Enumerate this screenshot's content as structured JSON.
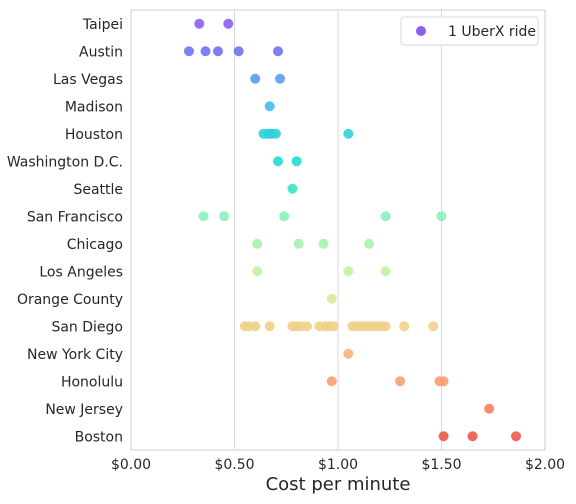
{
  "chart_data": {
    "type": "scatter",
    "title": "",
    "xlabel": "Cost per minute",
    "ylabel": "",
    "xlim": [
      0,
      2
    ],
    "x_ticks": [
      0,
      0.5,
      1.0,
      1.5,
      2.0
    ],
    "x_tick_labels": [
      "$0.00",
      "$0.50",
      "$1.00",
      "$1.50",
      "$2.00"
    ],
    "grid": "vertical",
    "legend": {
      "position": "top-right",
      "label": "1 UberX ride"
    },
    "categories": [
      "Taipei",
      "Austin",
      "Las Vegas",
      "Madison",
      "Houston",
      "Washington D.C.",
      "Seattle",
      "San Francisco",
      "Chicago",
      "Los Angeles",
      "Orange County",
      "San Diego",
      "New York City",
      "Honolulu",
      "New Jersey",
      "Boston"
    ],
    "colors": [
      "#8c5ef3",
      "#6f72f2",
      "#5b9bf0",
      "#43bdea",
      "#2dd3dc",
      "#24dccd",
      "#3ae6c0",
      "#8af1bb",
      "#a6f3ad",
      "#c2f2a2",
      "#d8eb98",
      "#eed08a",
      "#f6b27f",
      "#f89e72",
      "#f97d62",
      "#f1564a"
    ],
    "points": [
      [
        0.33,
        0.47
      ],
      [
        0.28,
        0.36,
        0.42,
        0.52,
        0.71
      ],
      [
        0.6,
        0.72
      ],
      [
        0.67
      ],
      [
        0.64,
        0.66,
        0.67,
        0.68,
        0.7,
        1.05
      ],
      [
        0.71,
        0.8
      ],
      [
        0.78
      ],
      [
        0.35,
        0.45,
        0.74,
        1.23,
        1.5
      ],
      [
        0.61,
        0.81,
        0.93,
        1.15
      ],
      [
        0.61,
        1.05,
        1.23
      ],
      [
        0.97
      ],
      [
        0.55,
        0.57,
        0.6,
        0.67,
        0.78,
        0.8,
        0.82,
        0.85,
        0.91,
        0.94,
        0.96,
        0.98,
        1.07,
        1.09,
        1.11,
        1.13,
        1.15,
        1.17,
        1.19,
        1.21,
        1.23,
        1.32,
        1.46
      ],
      [
        1.05
      ],
      [
        0.97,
        1.3,
        1.49,
        1.51
      ],
      [
        1.73
      ],
      [
        1.51,
        1.65,
        1.86
      ]
    ]
  }
}
